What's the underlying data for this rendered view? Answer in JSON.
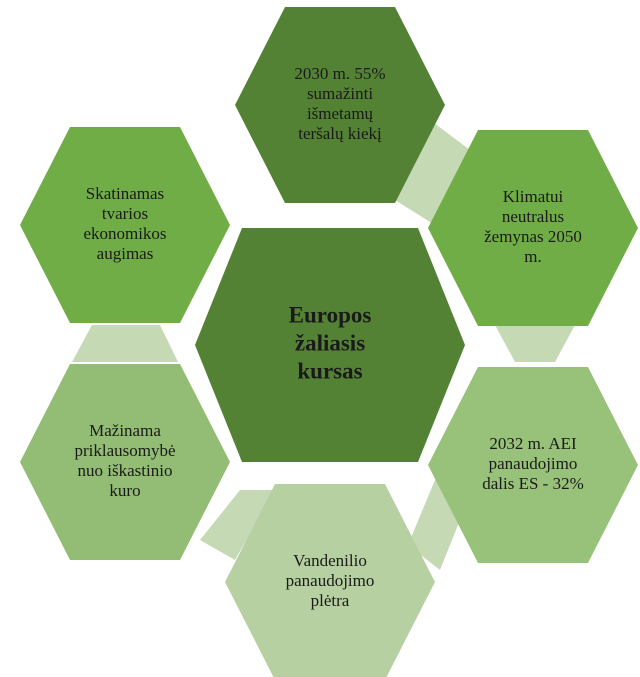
{
  "center": {
    "lines": [
      "Europos",
      "žaliasis",
      "kursas"
    ]
  },
  "nodes": [
    {
      "lines": [
        "2030 m. 55%",
        "sumažinti",
        "išmetamų",
        "teršalų kiekį"
      ]
    },
    {
      "lines": [
        "Klimatui",
        "neutralus",
        "žemynas 2050",
        "m."
      ]
    },
    {
      "lines": [
        "2032 m. AEI",
        "panaudojimo",
        "dalis ES - 32%"
      ]
    },
    {
      "lines": [
        "Vandenilio",
        "panaudojimo",
        "plėtra"
      ]
    },
    {
      "lines": [
        "Mažinama",
        "priklausomybė",
        "nuo iškastinio",
        "kuro"
      ]
    },
    {
      "lines": [
        "Skatinamas",
        "tvarios",
        "ekonomikos",
        "augimas"
      ]
    }
  ]
}
